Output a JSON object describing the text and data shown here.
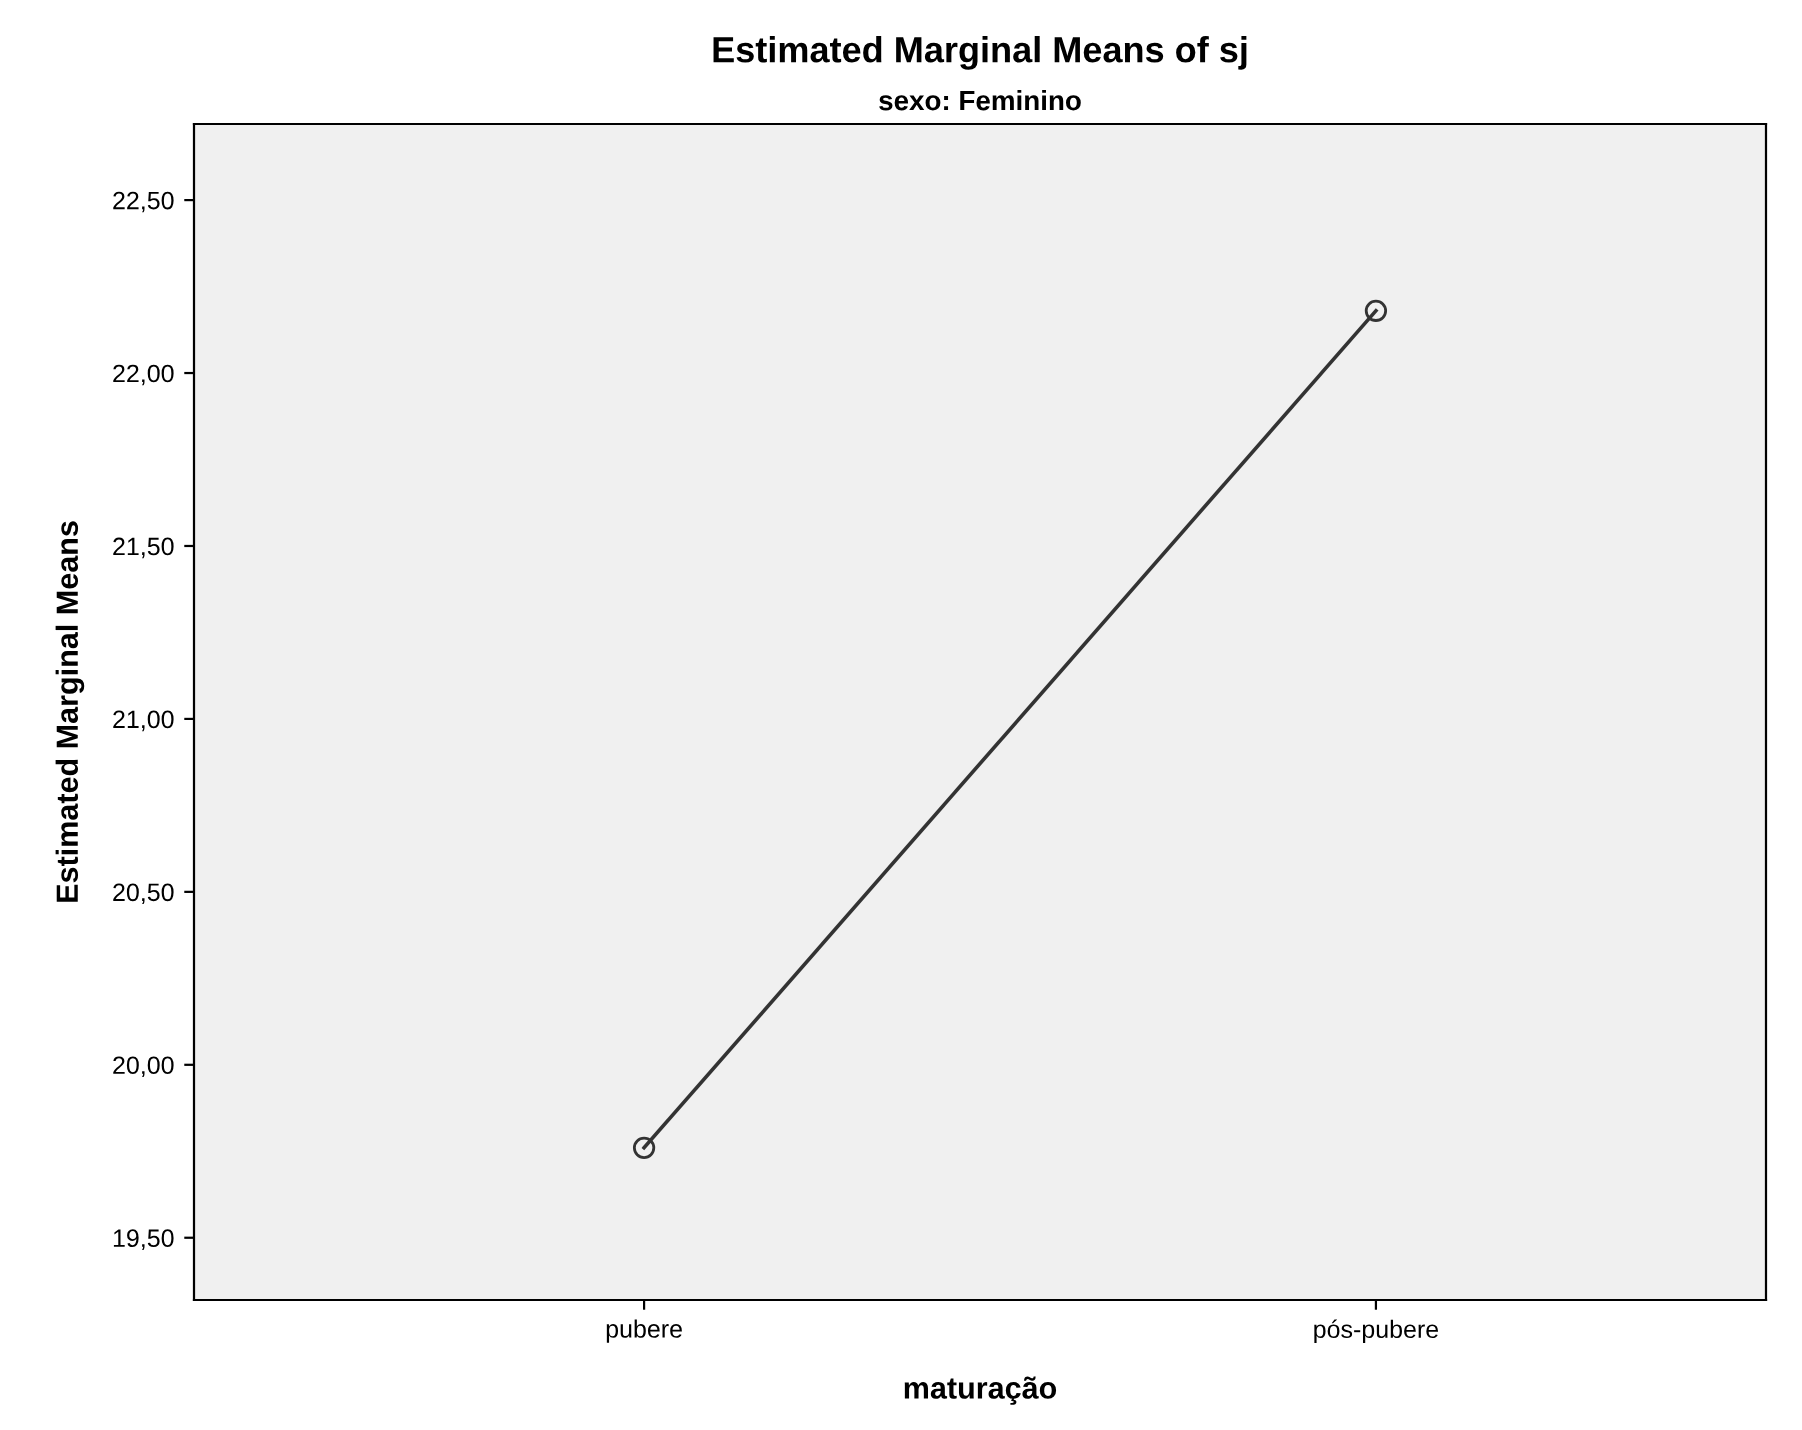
{
  "chart_data": {
    "type": "line",
    "title": "Estimated Marginal Means of sj",
    "subtitle": "sexo: Feminino",
    "xlabel": "maturação",
    "ylabel": "Estimated Marginal Means",
    "categories": [
      "pubere",
      "pós-pubere"
    ],
    "series": [
      {
        "color": "#333333",
        "values": [
          19.76,
          22.18
        ]
      }
    ],
    "marker": "circle",
    "line_style": "solid",
    "grid": false,
    "legend": false,
    "ylim": [
      19.32,
      22.72
    ],
    "yticks": [
      {
        "value": 19.5,
        "label": "19,50"
      },
      {
        "value": 20.0,
        "label": "20,00"
      },
      {
        "value": 20.5,
        "label": "20,50"
      },
      {
        "value": 21.0,
        "label": "21,00"
      },
      {
        "value": 21.5,
        "label": "21,50"
      },
      {
        "value": 22.0,
        "label": "22,00"
      },
      {
        "value": 22.5,
        "label": "22,50"
      }
    ]
  }
}
